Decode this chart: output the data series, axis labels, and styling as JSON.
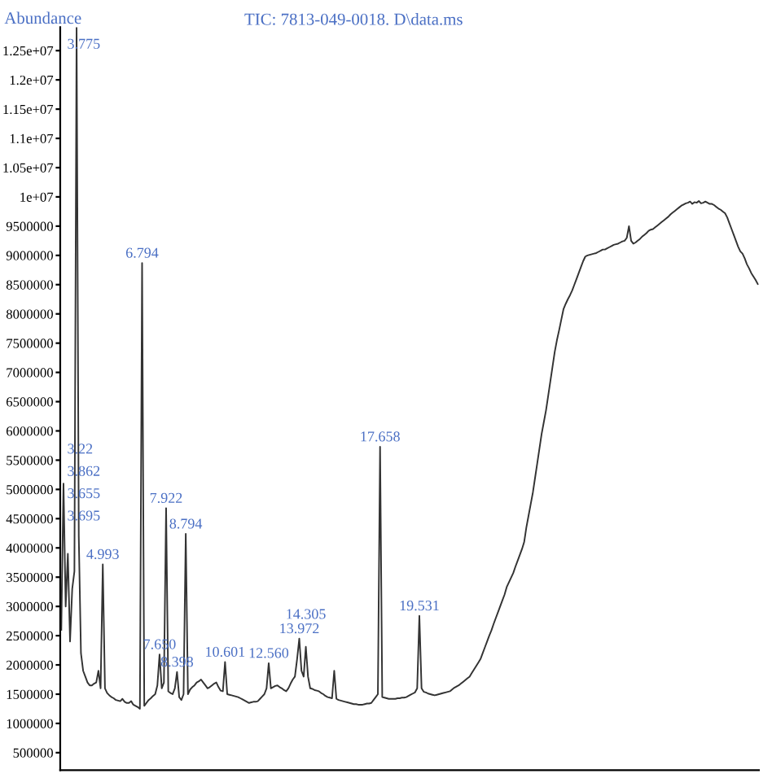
{
  "chart_data": {
    "type": "line",
    "title": "TIC: 7813-049-0018. D\\data.ms",
    "ylabel": "Abundance",
    "tick_labels": "y",
    "ylim": [
      200000,
      12900000
    ],
    "yticks": [
      500000,
      1000000,
      1500000,
      2000000,
      2500000,
      3000000,
      3500000,
      4000000,
      4500000,
      5000000,
      5500000,
      6000000,
      6500000,
      7000000,
      7500000,
      8000000,
      8500000,
      9000000,
      9500000,
      {
        "value": 10000000,
        "label": "1e+07"
      },
      {
        "value": 10500000,
        "label": "1.05e+07"
      },
      {
        "value": 11000000,
        "label": "1.1e+07"
      },
      {
        "value": 11500000,
        "label": "1.15e+07"
      },
      {
        "value": 12000000,
        "label": "1.2e+07"
      },
      {
        "value": 12500000,
        "label": "1.25e+07"
      }
    ],
    "categories": [
      null,
      null,
      null,
      null,
      null,
      null,
      null,
      null,
      null,
      null,
      null,
      null,
      null,
      null,
      null,
      null,
      null,
      null,
      null,
      null,
      null,
      null,
      null,
      null,
      null,
      null,
      null,
      null,
      null,
      null,
      null,
      null,
      null,
      null,
      null,
      null,
      null,
      null,
      null,
      null,
      null,
      null,
      null,
      null,
      null,
      null,
      null,
      null,
      null,
      null,
      null,
      null,
      null,
      null,
      null,
      null,
      null,
      null,
      null,
      null,
      null,
      null,
      null,
      null,
      null,
      null,
      null,
      null,
      null,
      null,
      null,
      null,
      null,
      null,
      null,
      null,
      null,
      null,
      null,
      null,
      null,
      null,
      null,
      null,
      null,
      null,
      null,
      null,
      null,
      null,
      null,
      null,
      null,
      null,
      null,
      null,
      null,
      null,
      null,
      null,
      null,
      null,
      null,
      null,
      null,
      null,
      null,
      null,
      null,
      null,
      null,
      null,
      null,
      null,
      null,
      null,
      null,
      null,
      null,
      null,
      null,
      null,
      null,
      null,
      null,
      null,
      null,
      null,
      null,
      null,
      null,
      null,
      null,
      null,
      null,
      null,
      null,
      null,
      null,
      null,
      null,
      null,
      null,
      null,
      null,
      null,
      null,
      null,
      null,
      null,
      null,
      null,
      null,
      null,
      null,
      null,
      null,
      null,
      null,
      null,
      null,
      null,
      null,
      null,
      null,
      null,
      null,
      null,
      null,
      null,
      null,
      null,
      null,
      null,
      null,
      null,
      null,
      null,
      null,
      null,
      null,
      null,
      null,
      null,
      null,
      null,
      null,
      null,
      null,
      null,
      null,
      null,
      null,
      null,
      null,
      null,
      null,
      null,
      null,
      null,
      null,
      null,
      null,
      null,
      null,
      null,
      null,
      null,
      null,
      null,
      null,
      null,
      null,
      null,
      null,
      null,
      null,
      null,
      null,
      null,
      null,
      null,
      null,
      null,
      null,
      null,
      null,
      null,
      null,
      null,
      null,
      null,
      null,
      null,
      null,
      null,
      null,
      null,
      null,
      null,
      null,
      null,
      null,
      null,
      null,
      null,
      null,
      null,
      null,
      null,
      null,
      null,
      null,
      null,
      null,
      null,
      null,
      null,
      null,
      null,
      null,
      null,
      null,
      null,
      null,
      null,
      null,
      null,
      null,
      null,
      null,
      null,
      null,
      null,
      null,
      null,
      null,
      null,
      null,
      null,
      null,
      null,
      null,
      null,
      null,
      null,
      null,
      null,
      null,
      null,
      null,
      null,
      null,
      null,
      null,
      null,
      null,
      null,
      null,
      null,
      null,
      null,
      null,
      null,
      null,
      null,
      null,
      null,
      null,
      null,
      null,
      null,
      null,
      null,
      null,
      null,
      null,
      null,
      null,
      null
    ],
    "series": [
      {
        "color": "#333333",
        "values": [
          2600000,
          5100000,
          3000000,
          3900000,
          2400000,
          3300000,
          3600000,
          12900000,
          4200000,
          2200000,
          1900000,
          1800000,
          1700000,
          1650000,
          1650000,
          1680000,
          1700000,
          1900000,
          1600000,
          3720000,
          1600000,
          1520000,
          1480000,
          1450000,
          1430000,
          1400000,
          1390000,
          1380000,
          1420000,
          1370000,
          1350000,
          1350000,
          1380000,
          1320000,
          1300000,
          1280000,
          1250000,
          8870000,
          1300000,
          1350000,
          1400000,
          1430000,
          1470000,
          1500000,
          1650000,
          2180000,
          1600000,
          1700000,
          4680000,
          1550000,
          1520000,
          1500000,
          1600000,
          1880000,
          1450000,
          1400000,
          1500000,
          4240000,
          1500000,
          1580000,
          1620000,
          1650000,
          1700000,
          1720000,
          1750000,
          1700000,
          1650000,
          1600000,
          1620000,
          1650000,
          1680000,
          1700000,
          1620000,
          1560000,
          1550000,
          2050000,
          1500000,
          1490000,
          1480000,
          1470000,
          1460000,
          1450000,
          1430000,
          1410000,
          1390000,
          1370000,
          1350000,
          1360000,
          1370000,
          1370000,
          1380000,
          1420000,
          1460000,
          1500000,
          1600000,
          2030000,
          1600000,
          1620000,
          1640000,
          1650000,
          1620000,
          1600000,
          1570000,
          1550000,
          1600000,
          1680000,
          1750000,
          1800000,
          2100000,
          2450000,
          1900000,
          1800000,
          2310000,
          1800000,
          1600000,
          1590000,
          1570000,
          1560000,
          1550000,
          1520000,
          1500000,
          1470000,
          1450000,
          1440000,
          1430000,
          1900000,
          1420000,
          1400000,
          1390000,
          1380000,
          1370000,
          1360000,
          1350000,
          1340000,
          1330000,
          1330000,
          1320000,
          1320000,
          1320000,
          1330000,
          1340000,
          1340000,
          1350000,
          1400000,
          1450000,
          1500000,
          5730000,
          1450000,
          1440000,
          1430000,
          1420000,
          1420000,
          1420000,
          1420000,
          1430000,
          1430000,
          1440000,
          1440000,
          1450000,
          1470000,
          1490000,
          1510000,
          1530000,
          1600000,
          2840000,
          1600000,
          1540000,
          1530000,
          1510000,
          1500000,
          1490000,
          1480000,
          1490000,
          1500000,
          1510000,
          1520000,
          1530000,
          1540000,
          1550000,
          1580000,
          1610000,
          1630000,
          1650000,
          1680000,
          1710000,
          1740000,
          1770000,
          1800000,
          1860000,
          1920000,
          1980000,
          2040000,
          2100000,
          2200000,
          2300000,
          2400000,
          2500000,
          2590000,
          2700000,
          2800000,
          2900000,
          3000000,
          3100000,
          3200000,
          3330000,
          3410000,
          3490000,
          3570000,
          3680000,
          3780000,
          3880000,
          3980000,
          4100000,
          4350000,
          4550000,
          4750000,
          4950000,
          5200000,
          5450000,
          5700000,
          5950000,
          6150000,
          6350000,
          6600000,
          6850000,
          7100000,
          7350000,
          7550000,
          7720000,
          7900000,
          8080000,
          8170000,
          8250000,
          8320000,
          8400000,
          8500000,
          8600000,
          8700000,
          8800000,
          8900000,
          8980000,
          9000000,
          9010000,
          9020000,
          9030000,
          9040000,
          9060000,
          9080000,
          9100000,
          9100000,
          9120000,
          9140000,
          9160000,
          9180000,
          9190000,
          9200000,
          9220000,
          9240000,
          9250000,
          9300000,
          9500000,
          9250000,
          9200000,
          9220000,
          9250000,
          9280000,
          9320000,
          9350000,
          9380000,
          9420000,
          9440000,
          9450000,
          9480000,
          9510000,
          9540000,
          9570000,
          9600000,
          9630000,
          9660000,
          9700000,
          9730000,
          9760000,
          9790000,
          9820000,
          9850000,
          9870000,
          9890000,
          9900000,
          9920000,
          9880000,
          9910000,
          9900000,
          9930000,
          9890000,
          9900000,
          9920000,
          9900000,
          9880000,
          9880000,
          9860000,
          9830000,
          9800000,
          9780000,
          9750000,
          9720000,
          9650000,
          9550000,
          9450000,
          9350000,
          9250000,
          9150000,
          9070000,
          9030000,
          8950000,
          8850000,
          8780000,
          8700000,
          8640000,
          8580000,
          8510000
        ]
      }
    ],
    "annotations": [
      "3.775",
      "3.22",
      "3.862",
      "3.655",
      "3.695",
      {
        "text": "4.993",
        "y": 3720000
      },
      {
        "text": "6.794",
        "y": 8870000
      },
      {
        "text": "7.650",
        "y": 2180000
      },
      {
        "text": "7.922",
        "y": 4680000
      },
      {
        "text": "8.398",
        "y": 1880000
      },
      {
        "text": "8.794",
        "y": 4240000
      },
      {
        "text": "10.601",
        "y": 2050000
      },
      {
        "text": "12.560",
        "y": 2030000
      },
      {
        "text": "13.972",
        "y": 2450000
      },
      {
        "text": "14.305",
        "y": 2310000
      },
      {
        "text": "17.658",
        "y": 5730000
      },
      {
        "text": "19.531",
        "y": 2840000
      }
    ]
  }
}
